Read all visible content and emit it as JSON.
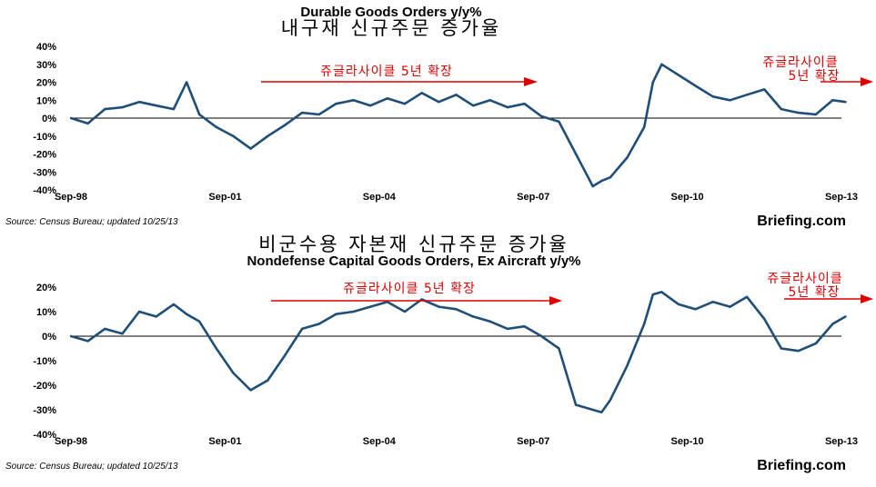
{
  "colors": {
    "series": "#1f4e79",
    "annotation": "#e00000",
    "zero_line": "#000000",
    "grid": "#c8c8c8"
  },
  "chart_data": [
    {
      "type": "line",
      "title": "Durable Goods Orders y/y%",
      "subtitle": "내구재 신규주문 증가율",
      "source": "Source: Census Bureau; updated 10/25/13",
      "brand": "Briefing.com",
      "x_tick_labels": [
        "Sep-98",
        "Sep-01",
        "Sep-04",
        "Sep-07",
        "Sep-10",
        "Sep-13"
      ],
      "y_tick_labels": [
        "40%",
        "30%",
        "20%",
        "10%",
        "0%",
        "-10%",
        "-20%",
        "-30%",
        "-40%"
      ],
      "ylim": [
        -40,
        40
      ],
      "grid": true,
      "annotations": [
        {
          "text": "쥬글라사이클 5년 확장"
        },
        {
          "text": "쥬글라사이클",
          "line2": "5년 확장"
        }
      ],
      "series": [
        {
          "x": [
            1998.67,
            1999.0,
            1999.33,
            1999.67,
            2000.0,
            2000.33,
            2000.67,
            2000.92,
            2001.17,
            2001.5,
            2001.83,
            2002.17,
            2002.5,
            2002.83,
            2003.17,
            2003.5,
            2003.83,
            2004.17,
            2004.5,
            2004.83,
            2005.17,
            2005.5,
            2005.83,
            2006.17,
            2006.5,
            2006.83,
            2007.17,
            2007.5,
            2007.83,
            2008.17,
            2008.5,
            2008.83,
            2009.0,
            2009.17,
            2009.5,
            2009.83,
            2010.0,
            2010.17,
            2010.5,
            2010.83,
            2011.17,
            2011.5,
            2011.83,
            2012.17,
            2012.5,
            2012.83,
            2013.17,
            2013.5,
            2013.75
          ],
          "y": [
            0,
            -3,
            5,
            6,
            9,
            7,
            5,
            20,
            2,
            -5,
            -10,
            -17,
            -10,
            -4,
            3,
            2,
            8,
            10,
            7,
            11,
            8,
            14,
            9,
            13,
            7,
            10,
            6,
            8,
            1,
            -2,
            -20,
            -38,
            -35,
            -33,
            -22,
            -5,
            20,
            30,
            24,
            18,
            12,
            10,
            13,
            16,
            5,
            3,
            2,
            10,
            9
          ]
        }
      ]
    },
    {
      "type": "line",
      "title": "Nondefense Capital Goods Orders, Ex Aircraft y/y%",
      "subtitle": "비군수용 자본재 신규주문 증가율",
      "source": "Source: Census Bureau; updated 10/25/13",
      "brand": "Briefing.com",
      "x_tick_labels": [
        "Sep-98",
        "Sep-01",
        "Sep-04",
        "Sep-07",
        "Sep-10",
        "Sep-13"
      ],
      "y_tick_labels": [
        "20%",
        "10%",
        "0%",
        "-10%",
        "-20%",
        "-30%",
        "-40%"
      ],
      "ylim": [
        -40,
        20
      ],
      "grid": true,
      "annotations": [
        {
          "text": "쥬글라사이클 5년 확장"
        },
        {
          "text": "쥬글라사이클",
          "line2": "5년 확장"
        }
      ],
      "series": [
        {
          "x": [
            1998.67,
            1999.0,
            1999.33,
            1999.67,
            2000.0,
            2000.33,
            2000.67,
            2000.92,
            2001.17,
            2001.5,
            2001.83,
            2002.17,
            2002.5,
            2002.83,
            2003.17,
            2003.5,
            2003.83,
            2004.17,
            2004.5,
            2004.83,
            2005.17,
            2005.5,
            2005.83,
            2006.17,
            2006.5,
            2006.83,
            2007.17,
            2007.5,
            2007.83,
            2008.17,
            2008.5,
            2008.83,
            2009.0,
            2009.17,
            2009.5,
            2009.83,
            2010.0,
            2010.17,
            2010.5,
            2010.83,
            2011.17,
            2011.5,
            2011.83,
            2012.17,
            2012.5,
            2012.83,
            2013.17,
            2013.5,
            2013.75
          ],
          "y": [
            0,
            -2,
            3,
            1,
            10,
            8,
            13,
            9,
            6,
            -5,
            -15,
            -22,
            -18,
            -8,
            3,
            5,
            9,
            10,
            12,
            14,
            10,
            15,
            12,
            11,
            8,
            6,
            3,
            4,
            0,
            -5,
            -28,
            -30,
            -31,
            -26,
            -12,
            5,
            17,
            18,
            13,
            11,
            14,
            12,
            16,
            7,
            -5,
            -6,
            -3,
            5,
            8
          ]
        }
      ]
    }
  ]
}
